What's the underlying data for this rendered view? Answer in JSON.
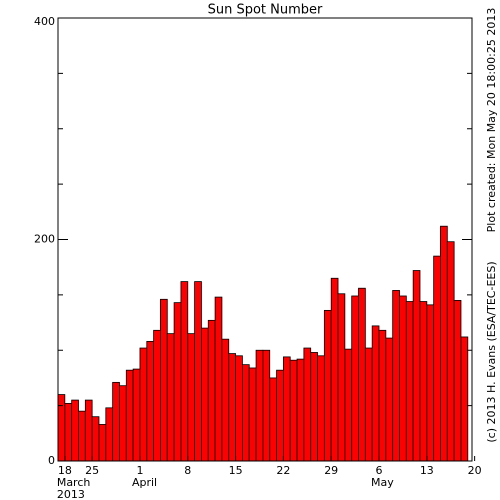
{
  "chart_data": {
    "type": "bar",
    "title": "Sun Spot Number",
    "color": "#ff0000",
    "categories": [
      null,
      "18",
      null,
      null,
      null,
      "25",
      null,
      null,
      null,
      null,
      null,
      null,
      "1",
      null,
      null,
      null,
      null,
      null,
      null,
      "8",
      null,
      null,
      null,
      null,
      null,
      null,
      "15",
      null,
      null,
      null,
      null,
      null,
      null,
      "22",
      null,
      null,
      null,
      null,
      null,
      null,
      "29",
      null,
      null,
      null,
      null,
      null,
      null,
      "6",
      null,
      null,
      null,
      null,
      null,
      null,
      "13",
      null,
      null,
      null,
      null,
      null,
      null,
      "20"
    ],
    "values": [
      60,
      52,
      55,
      45,
      55,
      40,
      33,
      48,
      71,
      68,
      82,
      83,
      102,
      108,
      118,
      146,
      115,
      143,
      162,
      115,
      162,
      120,
      127,
      148,
      110,
      97,
      95,
      87,
      84,
      100,
      100,
      75,
      82,
      94,
      91,
      92,
      102,
      98,
      95,
      136,
      165,
      151,
      101,
      149,
      156,
      102,
      122,
      118,
      111,
      154,
      149,
      144,
      172,
      144,
      141,
      185,
      212,
      198,
      145,
      112,
      null,
      null
    ],
    "month_labels": [
      "March",
      "April",
      "May"
    ],
    "year_label": "2013",
    "ylim": [
      0,
      400
    ],
    "yticks": [
      0,
      200,
      400
    ],
    "yticks_minor": [
      50,
      100,
      150,
      250,
      300,
      350
    ],
    "side_notes": [
      "Plot created: Mon May 20 18:00:25 2013",
      "(c) 2013 H. Evans (ESA/TEC-EES)"
    ]
  }
}
